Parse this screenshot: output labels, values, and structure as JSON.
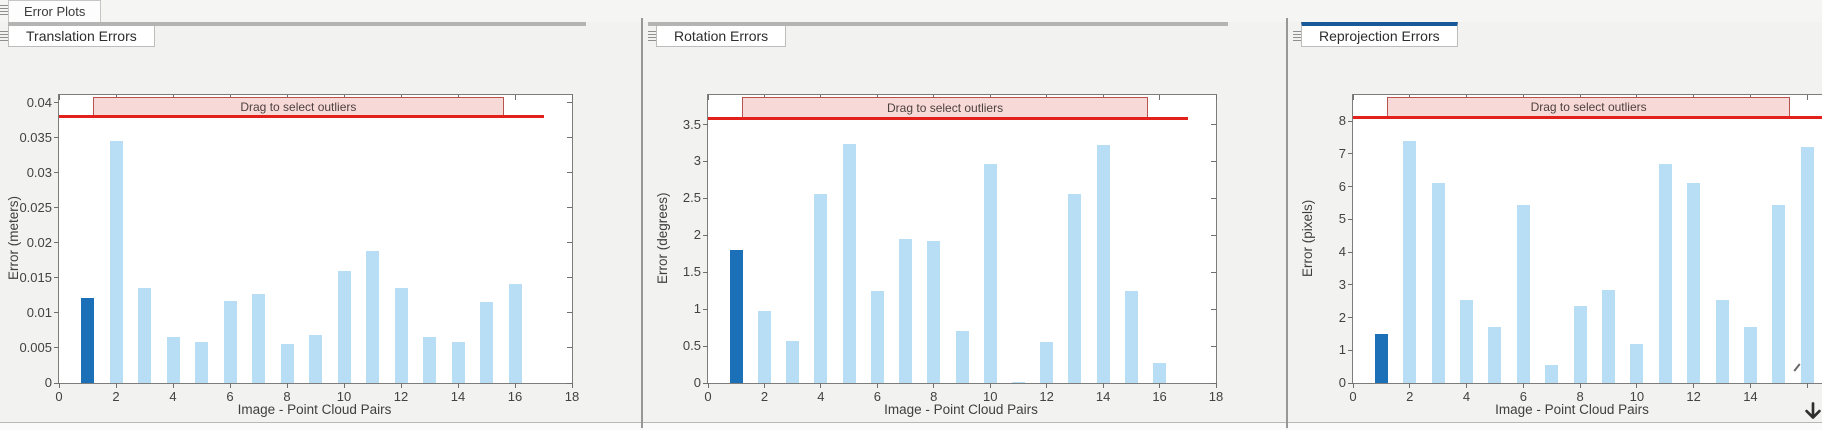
{
  "app": {
    "top_tab_label": "Error Plots"
  },
  "panels": [
    {
      "tab_title": "Translation Errors",
      "accent_color": "#b4b4b2"
    },
    {
      "tab_title": "Rotation Errors",
      "accent_color": "#b4b4b2"
    },
    {
      "tab_title": "Reprojection Errors",
      "accent_color": "#19599a"
    }
  ],
  "chart_data": [
    {
      "type": "bar",
      "title": "Translation Errors",
      "ylabel": "Error (meters)",
      "xlabel": "Image - Point Cloud Pairs",
      "x": [
        1,
        2,
        3,
        4,
        5,
        6,
        7,
        8,
        9,
        10,
        11,
        12,
        13,
        14,
        15,
        16
      ],
      "values": [
        0.0121,
        0.0346,
        0.0135,
        0.0066,
        0.0058,
        0.0117,
        0.0127,
        0.0055,
        0.0068,
        0.016,
        0.0188,
        0.0135,
        0.0065,
        0.0058,
        0.0116,
        0.0141
      ],
      "selected_index": 0,
      "threshold": 0.038,
      "band_label": "Drag to select outliers",
      "band_x": [
        1.2,
        15.6
      ],
      "red_x_end": 17,
      "ymax": 0.0411,
      "xmax": 18,
      "yticks": [
        {
          "v": 0,
          "label": "0"
        },
        {
          "v": 0.005,
          "label": "0.005"
        },
        {
          "v": 0.01,
          "label": "0.01"
        },
        {
          "v": 0.015,
          "label": "0.015"
        },
        {
          "v": 0.02,
          "label": "0.02"
        },
        {
          "v": 0.025,
          "label": "0.025"
        },
        {
          "v": 0.03,
          "label": "0.03"
        },
        {
          "v": 0.035,
          "label": "0.035"
        },
        {
          "v": 0.04,
          "label": "0.04"
        }
      ],
      "xticks": [
        {
          "v": 0,
          "label": "0"
        },
        {
          "v": 2,
          "label": "2"
        },
        {
          "v": 4,
          "label": "4"
        },
        {
          "v": 6,
          "label": "6"
        },
        {
          "v": 8,
          "label": "8"
        },
        {
          "v": 10,
          "label": "10"
        },
        {
          "v": 12,
          "label": "12"
        },
        {
          "v": 14,
          "label": "14"
        },
        {
          "v": 16,
          "label": "16"
        },
        {
          "v": 18,
          "label": "18"
        }
      ],
      "colors": {
        "bar": "#b8def5",
        "selected_bar": "#1c70b8",
        "threshold": "#e2211c",
        "band_fill": "#f7d9d8",
        "band_border": "#b85450"
      }
    },
    {
      "type": "bar",
      "title": "Rotation Errors",
      "ylabel": "Error (degrees)",
      "xlabel": "Image - Point Cloud Pairs",
      "x": [
        1,
        2,
        3,
        4,
        5,
        6,
        7,
        8,
        9,
        10,
        11,
        12,
        13,
        14,
        15,
        16
      ],
      "values": [
        1.8,
        0.98,
        0.57,
        2.56,
        3.23,
        1.25,
        1.95,
        1.92,
        0.71,
        2.96,
        0.02,
        0.56,
        2.56,
        3.22,
        1.25,
        0.27
      ],
      "selected_index": 0,
      "threshold": 3.58,
      "band_label": "Drag to select outliers",
      "band_x": [
        1.2,
        15.6
      ],
      "red_x_end": 17,
      "ymax": 3.9,
      "xmax": 18,
      "yticks": [
        {
          "v": 0,
          "label": "0"
        },
        {
          "v": 0.5,
          "label": "0.5"
        },
        {
          "v": 1,
          "label": "1"
        },
        {
          "v": 1.5,
          "label": "1.5"
        },
        {
          "v": 2,
          "label": "2"
        },
        {
          "v": 2.5,
          "label": "2.5"
        },
        {
          "v": 3,
          "label": "3"
        },
        {
          "v": 3.5,
          "label": "3.5"
        }
      ],
      "xticks": [
        {
          "v": 0,
          "label": "0"
        },
        {
          "v": 2,
          "label": "2"
        },
        {
          "v": 4,
          "label": "4"
        },
        {
          "v": 6,
          "label": "6"
        },
        {
          "v": 8,
          "label": "8"
        },
        {
          "v": 10,
          "label": "10"
        },
        {
          "v": 12,
          "label": "12"
        },
        {
          "v": 14,
          "label": "14"
        },
        {
          "v": 16,
          "label": "16"
        },
        {
          "v": 18,
          "label": "18"
        }
      ],
      "colors": {
        "bar": "#b8def5",
        "selected_bar": "#1c70b8",
        "threshold": "#e2211c",
        "band_fill": "#f7d9d8",
        "band_border": "#b85450"
      }
    },
    {
      "type": "bar",
      "title": "Reprojection Errors",
      "ylabel": "Error (pixels)",
      "xlabel": "Image - Point Cloud Pairs",
      "x": [
        1,
        2,
        3,
        4,
        5,
        6,
        7,
        8,
        9,
        10,
        11,
        12,
        13,
        14,
        15,
        16
      ],
      "values": [
        1.5,
        7.4,
        6.1,
        2.55,
        1.7,
        5.45,
        0.55,
        2.35,
        2.85,
        1.2,
        6.7,
        6.1,
        2.55,
        1.7,
        5.45,
        7.2
      ],
      "selected_index": 0,
      "threshold": 8.1,
      "band_label": "Drag to select outliers",
      "band_x": [
        1.2,
        15.4
      ],
      "red_x_end": 18,
      "ymax": 8.8,
      "xmax": 18,
      "yticks": [
        {
          "v": 0,
          "label": "0"
        },
        {
          "v": 1,
          "label": "1"
        },
        {
          "v": 2,
          "label": "2"
        },
        {
          "v": 3,
          "label": "3"
        },
        {
          "v": 4,
          "label": "4"
        },
        {
          "v": 5,
          "label": "5"
        },
        {
          "v": 6,
          "label": "6"
        },
        {
          "v": 7,
          "label": "7"
        },
        {
          "v": 8,
          "label": "8"
        }
      ],
      "xticks": [
        {
          "v": 0,
          "label": "0"
        },
        {
          "v": 2,
          "label": "2"
        },
        {
          "v": 4,
          "label": "4"
        },
        {
          "v": 6,
          "label": "6"
        },
        {
          "v": 8,
          "label": "8"
        },
        {
          "v": 10,
          "label": "10"
        },
        {
          "v": 12,
          "label": "12"
        },
        {
          "v": 14,
          "label": "14"
        },
        {
          "v": 16,
          "label": ""
        }
      ],
      "colors": {
        "bar": "#b8def5",
        "selected_bar": "#1c70b8",
        "threshold": "#e2211c",
        "band_fill": "#f7d9d8",
        "band_border": "#b85450"
      }
    }
  ]
}
